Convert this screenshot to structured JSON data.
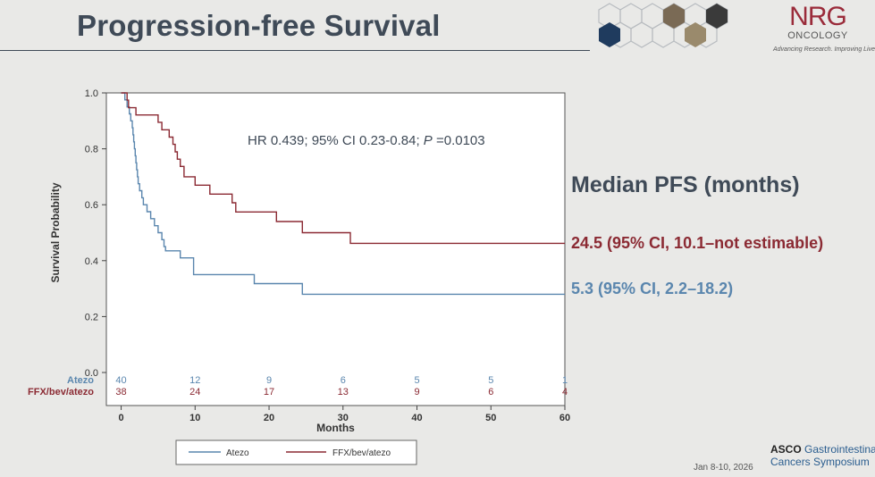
{
  "slide": {
    "title": "Progression-free Survival",
    "median_heading": "Median PFS (months)",
    "median_ffx": "24.5 (95% CI, 10.1–not estimable)",
    "median_atezo": "5.3 (95% CI, 2.2–18.2)",
    "date": "Jan 8-10, 2026",
    "logo_main": "NRG",
    "logo_sub": "ONCOLOGY",
    "logo_tagline": "Advancing Research. Improving Lives.™",
    "asco_brand": "ASCO",
    "asco_line1": "Gastrointestinal",
    "asco_line2": "Cancers Symposium"
  },
  "chart_data": {
    "type": "line",
    "title": "",
    "annotation": {
      "prefix": "HR 0.439; 95% CI 0.23-0.84; ",
      "italic": "P",
      "suffix": " =0.0103"
    },
    "xlabel": "Months",
    "ylabel": "Survival Probability",
    "xlim": [
      -2,
      60
    ],
    "ylim": [
      0,
      1
    ],
    "xticks": [
      0,
      10,
      20,
      30,
      40,
      50,
      60
    ],
    "yticks": [
      0.0,
      0.2,
      0.4,
      0.6,
      0.8,
      1.0
    ],
    "ytick_labels": [
      "0.0",
      "0.2",
      "0.4",
      "0.6",
      "0.8",
      "1.0"
    ],
    "series": [
      {
        "name": "Atezo",
        "color": "#5a86ae",
        "points": [
          [
            0,
            1.0
          ],
          [
            0.5,
            1.0
          ],
          [
            0.5,
            0.975
          ],
          [
            0.8,
            0.975
          ],
          [
            0.8,
            0.95
          ],
          [
            1.1,
            0.95
          ],
          [
            1.1,
            0.925
          ],
          [
            1.3,
            0.925
          ],
          [
            1.3,
            0.9
          ],
          [
            1.5,
            0.9
          ],
          [
            1.5,
            0.875
          ],
          [
            1.6,
            0.875
          ],
          [
            1.6,
            0.85
          ],
          [
            1.7,
            0.85
          ],
          [
            1.7,
            0.825
          ],
          [
            1.8,
            0.825
          ],
          [
            1.8,
            0.8
          ],
          [
            1.9,
            0.8
          ],
          [
            1.9,
            0.775
          ],
          [
            2.0,
            0.775
          ],
          [
            2.0,
            0.75
          ],
          [
            2.1,
            0.75
          ],
          [
            2.1,
            0.725
          ],
          [
            2.2,
            0.725
          ],
          [
            2.2,
            0.7
          ],
          [
            2.3,
            0.7
          ],
          [
            2.3,
            0.675
          ],
          [
            2.5,
            0.675
          ],
          [
            2.5,
            0.65
          ],
          [
            2.8,
            0.65
          ],
          [
            2.8,
            0.625
          ],
          [
            3.0,
            0.625
          ],
          [
            3.0,
            0.6
          ],
          [
            3.5,
            0.6
          ],
          [
            3.5,
            0.575
          ],
          [
            4.0,
            0.575
          ],
          [
            4.0,
            0.55
          ],
          [
            4.5,
            0.55
          ],
          [
            4.5,
            0.525
          ],
          [
            5.0,
            0.525
          ],
          [
            5.0,
            0.5
          ],
          [
            5.5,
            0.5
          ],
          [
            5.5,
            0.475
          ],
          [
            5.8,
            0.475
          ],
          [
            5.8,
            0.45
          ],
          [
            6.0,
            0.45
          ],
          [
            6.0,
            0.435
          ],
          [
            8.0,
            0.435
          ],
          [
            8.0,
            0.41
          ],
          [
            9.8,
            0.41
          ],
          [
            9.8,
            0.35
          ],
          [
            18.0,
            0.35
          ],
          [
            18.0,
            0.318
          ],
          [
            24.5,
            0.318
          ],
          [
            24.5,
            0.28
          ],
          [
            60,
            0.28
          ]
        ]
      },
      {
        "name": "FFX/bev/atezo",
        "color": "#8b2a33",
        "points": [
          [
            0,
            1.0
          ],
          [
            0.8,
            1.0
          ],
          [
            0.8,
            0.974
          ],
          [
            1.0,
            0.974
          ],
          [
            1.0,
            0.947
          ],
          [
            2.0,
            0.947
          ],
          [
            2.0,
            0.921
          ],
          [
            5.0,
            0.921
          ],
          [
            5.0,
            0.895
          ],
          [
            5.5,
            0.895
          ],
          [
            5.5,
            0.868
          ],
          [
            6.5,
            0.868
          ],
          [
            6.5,
            0.842
          ],
          [
            7.0,
            0.842
          ],
          [
            7.0,
            0.816
          ],
          [
            7.3,
            0.816
          ],
          [
            7.3,
            0.789
          ],
          [
            7.6,
            0.789
          ],
          [
            7.6,
            0.763
          ],
          [
            8.0,
            0.763
          ],
          [
            8.0,
            0.737
          ],
          [
            8.5,
            0.737
          ],
          [
            8.5,
            0.7
          ],
          [
            10.0,
            0.7
          ],
          [
            10.0,
            0.67
          ],
          [
            12.0,
            0.67
          ],
          [
            12.0,
            0.638
          ],
          [
            15.0,
            0.638
          ],
          [
            15.0,
            0.607
          ],
          [
            15.5,
            0.607
          ],
          [
            15.5,
            0.574
          ],
          [
            21.0,
            0.574
          ],
          [
            21.0,
            0.54
          ],
          [
            24.5,
            0.54
          ],
          [
            24.5,
            0.5
          ],
          [
            31.0,
            0.5
          ],
          [
            31.0,
            0.462
          ],
          [
            60,
            0.462
          ]
        ]
      }
    ],
    "risk_table": {
      "times": [
        0,
        10,
        20,
        30,
        40,
        50,
        60
      ],
      "rows": [
        {
          "name": "Atezo",
          "color": "#5a86ae",
          "values": [
            40,
            12,
            9,
            6,
            5,
            5,
            1
          ]
        },
        {
          "name": "FFX/bev/atezo",
          "color": "#8b2a33",
          "values": [
            38,
            24,
            17,
            13,
            9,
            6,
            4
          ]
        }
      ]
    },
    "legend": [
      {
        "label": "Atezo",
        "color": "#5a86ae"
      },
      {
        "label": "FFX/bev/atezo",
        "color": "#8b2a33"
      }
    ],
    "legend_position": "bottom"
  }
}
